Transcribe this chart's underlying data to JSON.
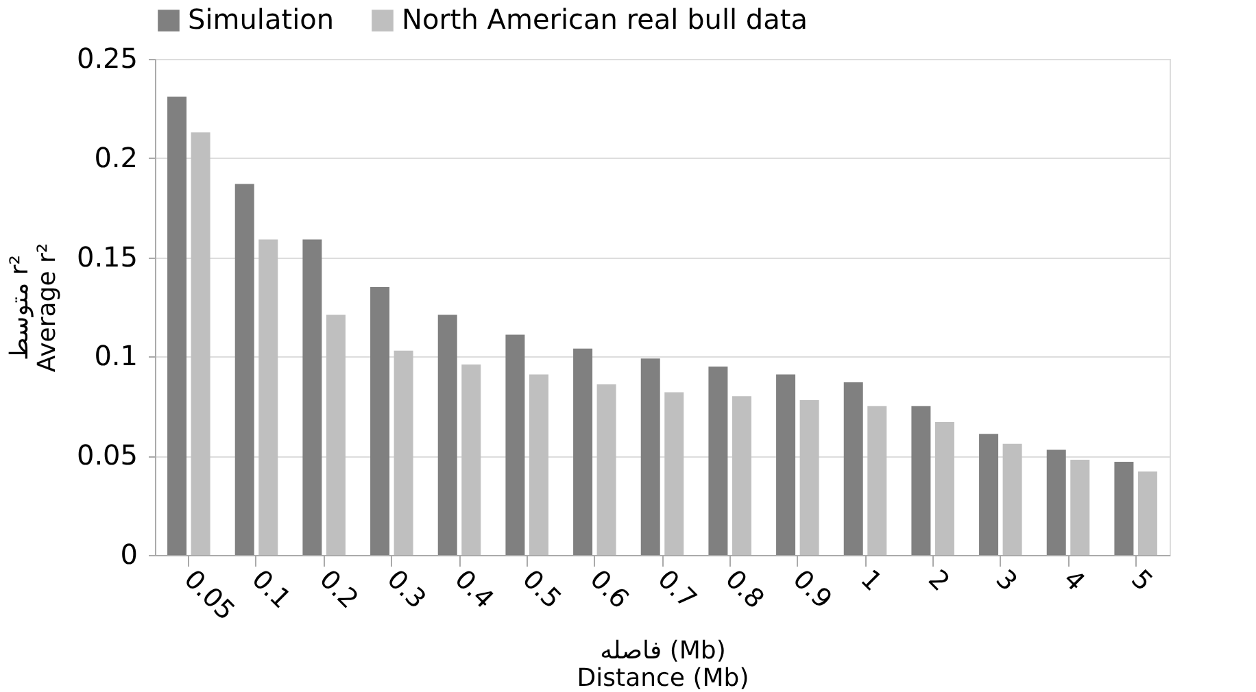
{
  "chart_data": {
    "type": "bar",
    "xlabel": "فاصله (Mb)\nDistance (Mb)",
    "ylabel": "متوسط r²\nAverage r²",
    "categories": [
      "0.05",
      "0.1",
      "0.2",
      "0.3",
      "0.4",
      "0.5",
      "0.6",
      "0.7",
      "0.8",
      "0.9",
      "1",
      "2",
      "3",
      "4",
      "5"
    ],
    "series": [
      {
        "name": "Simulation",
        "color": "#808080",
        "values": [
          0.231,
          0.187,
          0.159,
          0.135,
          0.121,
          0.111,
          0.104,
          0.099,
          0.095,
          0.091,
          0.087,
          0.075,
          0.061,
          0.053,
          0.047
        ]
      },
      {
        "name": "North American real bull data",
        "color": "#bfbfbf",
        "values": [
          0.213,
          0.159,
          0.121,
          0.103,
          0.096,
          0.091,
          0.086,
          0.082,
          0.08,
          0.078,
          0.075,
          0.067,
          0.056,
          0.048,
          0.042
        ]
      }
    ],
    "ylim": [
      0,
      0.25
    ],
    "yticks": [
      0,
      0.05,
      0.1,
      0.15,
      0.2,
      0.25
    ],
    "grid": "y",
    "legend": "top"
  }
}
